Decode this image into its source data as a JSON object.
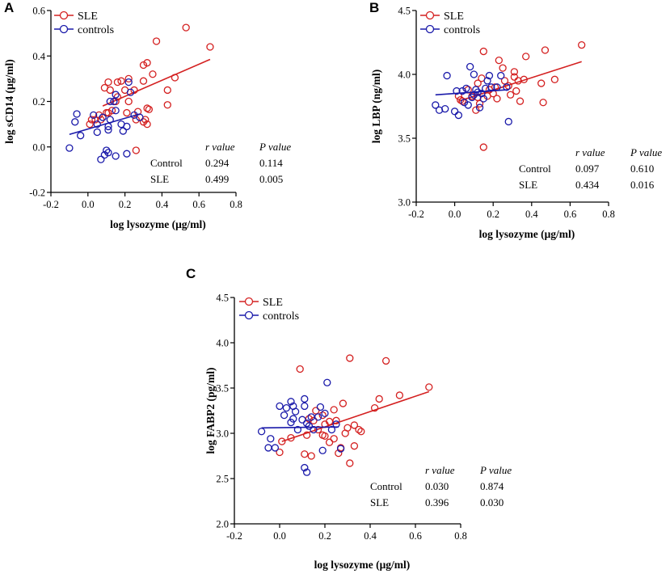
{
  "colors": {
    "sle": "#d42020",
    "controls": "#1a1aaa",
    "axis": "#000000"
  },
  "chart_data": [
    {
      "panel": "A",
      "type": "scatter",
      "xlabel": "log lysozyme (μg/ml)",
      "ylabel": "log sCD14 (μg/ml)",
      "xlim": [
        -0.2,
        0.8
      ],
      "ylim": [
        -0.2,
        0.6
      ],
      "xticks": [
        -0.2,
        0.0,
        0.2,
        0.4,
        0.6,
        0.8
      ],
      "yticks": [
        -0.2,
        0.0,
        0.2,
        0.4,
        0.6
      ],
      "xtick_labels": [
        "-0.2",
        "0.0",
        "0.2",
        "0.4",
        "0.6",
        "0.8"
      ],
      "ytick_labels": [
        "-0.2",
        "0.0",
        "0.2",
        "0.4",
        "0.6"
      ],
      "legend": [
        "SLE",
        "controls"
      ],
      "series": [
        {
          "name": "SLE",
          "color_key": "sle",
          "points": [
            [
              0.53,
              0.525
            ],
            [
              0.66,
              0.44
            ],
            [
              0.37,
              0.465
            ],
            [
              0.47,
              0.305
            ],
            [
              0.43,
              0.25
            ],
            [
              0.43,
              0.185
            ],
            [
              0.3,
              0.36
            ],
            [
              0.32,
              0.37
            ],
            [
              0.35,
              0.32
            ],
            [
              0.3,
              0.29
            ],
            [
              0.32,
              0.17
            ],
            [
              0.33,
              0.165
            ],
            [
              0.31,
              0.12
            ],
            [
              0.32,
              0.1
            ],
            [
              0.3,
              0.11
            ],
            [
              0.26,
              0.12
            ],
            [
              0.27,
              0.155
            ],
            [
              0.22,
              0.3
            ],
            [
              0.18,
              0.29
            ],
            [
              0.16,
              0.285
            ],
            [
              0.11,
              0.285
            ],
            [
              0.09,
              0.26
            ],
            [
              0.12,
              0.25
            ],
            [
              0.2,
              0.25
            ],
            [
              0.22,
              0.2
            ],
            [
              0.25,
              0.25
            ],
            [
              0.16,
              0.22
            ],
            [
              0.15,
              0.2
            ],
            [
              0.13,
              0.16
            ],
            [
              0.11,
              0.15
            ],
            [
              0.1,
              0.15
            ],
            [
              0.06,
              0.14
            ],
            [
              0.07,
              0.12
            ],
            [
              0.04,
              0.12
            ],
            [
              0.02,
              0.12
            ],
            [
              0.01,
              0.1
            ],
            [
              0.26,
              -0.015
            ],
            [
              0.21,
              0.15
            ]
          ],
          "fit": [
            [
              0.08,
              0.18
            ],
            [
              0.66,
              0.385
            ]
          ]
        },
        {
          "name": "controls",
          "color_key": "controls",
          "points": [
            [
              -0.1,
              -0.005
            ],
            [
              -0.07,
              0.11
            ],
            [
              -0.06,
              0.145
            ],
            [
              -0.04,
              0.05
            ],
            [
              0.03,
              0.14
            ],
            [
              0.05,
              0.065
            ],
            [
              0.07,
              -0.055
            ],
            [
              0.09,
              -0.035
            ],
            [
              0.1,
              -0.015
            ],
            [
              0.11,
              -0.025
            ],
            [
              0.08,
              0.13
            ],
            [
              0.11,
              0.075
            ],
            [
              0.11,
              0.09
            ],
            [
              0.12,
              0.12
            ],
            [
              0.12,
              0.2
            ],
            [
              0.14,
              0.2
            ],
            [
              0.15,
              0.16
            ],
            [
              0.18,
              0.1
            ],
            [
              0.19,
              0.07
            ],
            [
              0.21,
              0.09
            ],
            [
              0.22,
              0.285
            ],
            [
              0.23,
              0.24
            ],
            [
              0.25,
              0.14
            ],
            [
              0.28,
              0.13
            ],
            [
              0.15,
              -0.04
            ],
            [
              0.21,
              -0.03
            ],
            [
              0.15,
              0.23
            ],
            [
              0.05,
              0.1
            ]
          ],
          "fit": [
            [
              -0.1,
              0.055
            ],
            [
              0.28,
              0.145
            ]
          ]
        }
      ],
      "stats": {
        "header_r": "r value",
        "header_p": "P value",
        "rows": [
          {
            "label": "Control",
            "r": "0.294",
            "p": "0.114"
          },
          {
            "label": "SLE",
            "r": "0.499",
            "p": "0.005"
          }
        ]
      }
    },
    {
      "panel": "B",
      "type": "scatter",
      "xlabel": "log lysozyme (μg/ml)",
      "ylabel": "log LBP (ng/ml)",
      "xlim": [
        -0.2,
        0.8
      ],
      "ylim": [
        3.0,
        4.5
      ],
      "xticks": [
        -0.2,
        0.0,
        0.2,
        0.4,
        0.6,
        0.8
      ],
      "yticks": [
        3.0,
        3.5,
        4.0,
        4.5
      ],
      "xtick_labels": [
        "-0.2",
        "0.0",
        "0.2",
        "0.4",
        "0.6",
        "0.8"
      ],
      "ytick_labels": [
        "3.0",
        "3.5",
        "4.0",
        "4.5"
      ],
      "legend": [
        "SLE",
        "controls"
      ],
      "series": [
        {
          "name": "SLE",
          "color_key": "sle",
          "points": [
            [
              0.66,
              4.23
            ],
            [
              0.47,
              4.19
            ],
            [
              0.37,
              4.14
            ],
            [
              0.15,
              4.18
            ],
            [
              0.23,
              4.11
            ],
            [
              0.25,
              4.05
            ],
            [
              0.31,
              4.02
            ],
            [
              0.31,
              3.98
            ],
            [
              0.33,
              3.95
            ],
            [
              0.36,
              3.96
            ],
            [
              0.28,
              3.91
            ],
            [
              0.52,
              3.96
            ],
            [
              0.45,
              3.93
            ],
            [
              0.32,
              3.87
            ],
            [
              0.29,
              3.84
            ],
            [
              0.21,
              3.9
            ],
            [
              0.22,
              3.81
            ],
            [
              0.2,
              3.85
            ],
            [
              0.17,
              3.83
            ],
            [
              0.12,
              3.82
            ],
            [
              0.13,
              3.77
            ],
            [
              0.11,
              3.72
            ],
            [
              0.09,
              3.83
            ],
            [
              0.04,
              3.79
            ],
            [
              0.03,
              3.8
            ],
            [
              0.02,
              3.83
            ],
            [
              0.07,
              3.88
            ],
            [
              0.14,
              3.97
            ],
            [
              0.18,
              3.88
            ],
            [
              0.34,
              3.79
            ],
            [
              0.46,
              3.78
            ],
            [
              0.15,
              3.43
            ],
            [
              0.12,
              3.93
            ],
            [
              0.26,
              3.95
            ]
          ],
          "fit": [
            [
              0.02,
              3.79
            ],
            [
              0.66,
              4.1
            ]
          ]
        },
        {
          "name": "controls",
          "color_key": "controls",
          "points": [
            [
              -0.1,
              3.76
            ],
            [
              -0.08,
              3.72
            ],
            [
              -0.05,
              3.73
            ],
            [
              -0.04,
              3.99
            ],
            [
              0.0,
              3.71
            ],
            [
              0.01,
              3.87
            ],
            [
              0.02,
              3.68
            ],
            [
              0.04,
              3.87
            ],
            [
              0.05,
              3.78
            ],
            [
              0.07,
              3.76
            ],
            [
              0.09,
              3.82
            ],
            [
              0.1,
              3.84
            ],
            [
              0.11,
              3.88
            ],
            [
              0.12,
              3.86
            ],
            [
              0.13,
              3.74
            ],
            [
              0.14,
              3.85
            ],
            [
              0.16,
              3.89
            ],
            [
              0.17,
              3.95
            ],
            [
              0.18,
              3.99
            ],
            [
              0.19,
              3.9
            ],
            [
              0.1,
              4.0
            ],
            [
              0.22,
              3.9
            ],
            [
              0.24,
              3.99
            ],
            [
              0.28,
              3.63
            ],
            [
              0.06,
              3.89
            ],
            [
              0.27,
              3.9
            ],
            [
              0.15,
              3.81
            ],
            [
              0.08,
              4.06
            ]
          ],
          "fit": [
            [
              -0.1,
              3.84
            ],
            [
              0.28,
              3.88
            ]
          ]
        }
      ],
      "stats": {
        "header_r": "r value",
        "header_p": "P value",
        "rows": [
          {
            "label": "Control",
            "r": "0.097",
            "p": "0.610"
          },
          {
            "label": "SLE",
            "r": "0.434",
            "p": "0.016"
          }
        ]
      }
    },
    {
      "panel": "C",
      "type": "scatter",
      "xlabel": "log lysozyme (μg/ml)",
      "ylabel": "log FABP2 (pg/ml)",
      "xlim": [
        -0.2,
        0.8
      ],
      "ylim": [
        2.0,
        4.5
      ],
      "xticks": [
        -0.2,
        0.0,
        0.2,
        0.4,
        0.6,
        0.8
      ],
      "yticks": [
        2.0,
        2.5,
        3.0,
        3.5,
        4.0,
        4.5
      ],
      "xtick_labels": [
        "-0.2",
        "0.0",
        "0.2",
        "0.4",
        "0.6",
        "0.8"
      ],
      "ytick_labels": [
        "2.0",
        "2.5",
        "3.0",
        "3.5",
        "4.0",
        "4.5"
      ],
      "legend": [
        "SLE",
        "controls"
      ],
      "series": [
        {
          "name": "SLE",
          "color_key": "sle",
          "points": [
            [
              0.31,
              3.83
            ],
            [
              0.47,
              3.8
            ],
            [
              0.09,
              3.71
            ],
            [
              0.66,
              3.51
            ],
            [
              0.53,
              3.42
            ],
            [
              0.44,
              3.38
            ],
            [
              0.28,
              3.33
            ],
            [
              0.42,
              3.28
            ],
            [
              0.24,
              3.26
            ],
            [
              0.16,
              3.25
            ],
            [
              0.19,
              3.2
            ],
            [
              0.13,
              3.16
            ],
            [
              0.15,
              3.14
            ],
            [
              0.2,
              3.1
            ],
            [
              0.25,
              3.14
            ],
            [
              0.3,
              3.06
            ],
            [
              0.33,
              3.09
            ],
            [
              0.35,
              3.04
            ],
            [
              0.36,
              3.02
            ],
            [
              0.19,
              2.98
            ],
            [
              0.2,
              2.97
            ],
            [
              0.24,
              2.94
            ],
            [
              0.22,
              2.9
            ],
            [
              0.27,
              2.84
            ],
            [
              0.33,
              2.86
            ],
            [
              0.11,
              2.77
            ],
            [
              0.14,
              2.75
            ],
            [
              0.26,
              2.78
            ],
            [
              0.31,
              2.67
            ],
            [
              0.05,
              2.95
            ],
            [
              0.01,
              2.91
            ],
            [
              0.0,
              2.79
            ],
            [
              0.12,
              2.98
            ],
            [
              0.29,
              3.0
            ],
            [
              0.22,
              3.13
            ],
            [
              0.17,
              3.04
            ]
          ],
          "fit": [
            [
              0.01,
              2.91
            ],
            [
              0.66,
              3.46
            ]
          ]
        },
        {
          "name": "controls",
          "color_key": "controls",
          "points": [
            [
              -0.08,
              3.02
            ],
            [
              -0.05,
              2.84
            ],
            [
              -0.04,
              2.94
            ],
            [
              -0.02,
              2.84
            ],
            [
              0.0,
              3.3
            ],
            [
              0.02,
              3.2
            ],
            [
              0.03,
              3.28
            ],
            [
              0.05,
              3.35
            ],
            [
              0.06,
              3.3
            ],
            [
              0.06,
              3.16
            ],
            [
              0.07,
              3.24
            ],
            [
              0.08,
              3.04
            ],
            [
              0.1,
              3.15
            ],
            [
              0.11,
              3.3
            ],
            [
              0.11,
              3.38
            ],
            [
              0.12,
              3.11
            ],
            [
              0.13,
              3.08
            ],
            [
              0.14,
              3.18
            ],
            [
              0.15,
              3.04
            ],
            [
              0.17,
              3.18
            ],
            [
              0.18,
              3.29
            ],
            [
              0.19,
              2.81
            ],
            [
              0.2,
              3.22
            ],
            [
              0.21,
              3.56
            ],
            [
              0.23,
              3.04
            ],
            [
              0.25,
              3.1
            ],
            [
              0.27,
              2.83
            ],
            [
              0.11,
              2.62
            ],
            [
              0.12,
              2.57
            ],
            [
              0.05,
              3.12
            ]
          ],
          "fit": [
            [
              -0.08,
              3.06
            ],
            [
              0.26,
              3.07
            ]
          ]
        }
      ],
      "stats": {
        "header_r": "r value",
        "header_p": "P value",
        "rows": [
          {
            "label": "Control",
            "r": "0.030",
            "p": "0.874"
          },
          {
            "label": "SLE",
            "r": "0.396",
            "p": "0.030"
          }
        ]
      }
    }
  ]
}
